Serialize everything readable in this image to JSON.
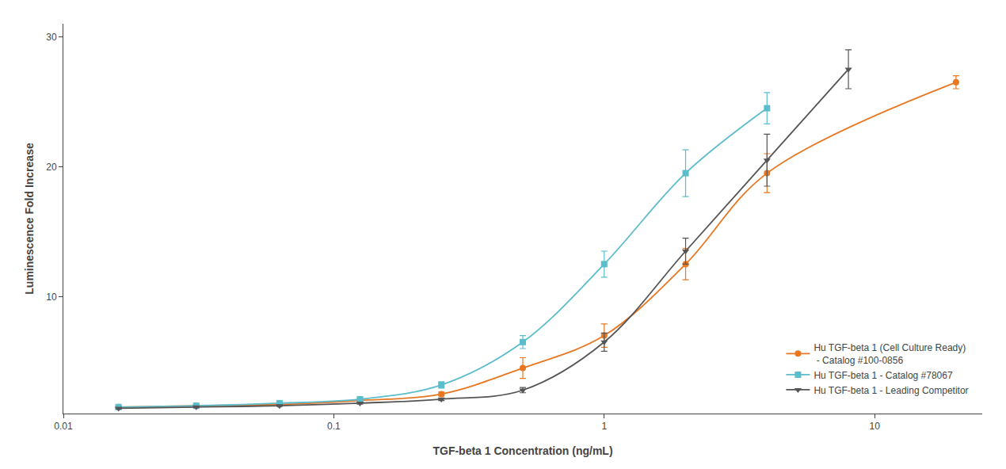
{
  "chart_data": {
    "type": "line",
    "xlabel": "TGF-beta 1 Concentration (ng/mL)",
    "ylabel": "Luminescence Fold Increase",
    "log": "x",
    "xlim": [
      0.01,
      25
    ],
    "xticks": [
      0.01,
      0.1,
      1,
      10
    ],
    "ylim": [
      1,
      31
    ],
    "yticks": [
      10,
      20,
      30
    ],
    "grid": false,
    "legend": "lower right",
    "line_style": "spline",
    "series": [
      {
        "name": "Hu TGF-beta 1 (Cell Culture Ready)\n - Catalog #100-0856",
        "color": "#E87722",
        "marker": "circle",
        "x": [
          0.016,
          0.031,
          0.063,
          0.125,
          0.25,
          0.5,
          1.0,
          2.0,
          4.0,
          20.0
        ],
        "values": [
          1.5,
          1.6,
          1.7,
          2.0,
          2.5,
          4.5,
          7.0,
          12.5,
          19.5,
          26.5
        ],
        "yerr": [
          0.05,
          0.05,
          0.05,
          0.1,
          0.15,
          0.8,
          0.9,
          1.2,
          1.5,
          0.5
        ]
      },
      {
        "name": "Hu TGF-beta 1 - Catalog #78067",
        "color": "#5BBCCC",
        "marker": "square",
        "x": [
          0.016,
          0.031,
          0.063,
          0.125,
          0.25,
          0.5,
          1.0,
          2.0,
          4.0
        ],
        "values": [
          1.5,
          1.6,
          1.8,
          2.1,
          3.2,
          6.5,
          12.5,
          19.5,
          24.5
        ],
        "yerr": [
          0.05,
          0.08,
          0.08,
          0.12,
          0.25,
          0.5,
          1.0,
          1.8,
          1.2
        ]
      },
      {
        "name": "Hu TGF-beta 1 - Leading Competitor",
        "color": "#555555",
        "marker": "triangle-down",
        "x": [
          0.016,
          0.031,
          0.063,
          0.125,
          0.25,
          0.5,
          1.0,
          2.0,
          4.0,
          8.0
        ],
        "values": [
          1.4,
          1.5,
          1.6,
          1.8,
          2.1,
          2.8,
          6.5,
          13.5,
          20.5,
          27.5
        ],
        "yerr": [
          0.05,
          0.05,
          0.05,
          0.08,
          0.1,
          0.2,
          0.7,
          1.0,
          2.0,
          1.5
        ]
      }
    ]
  }
}
